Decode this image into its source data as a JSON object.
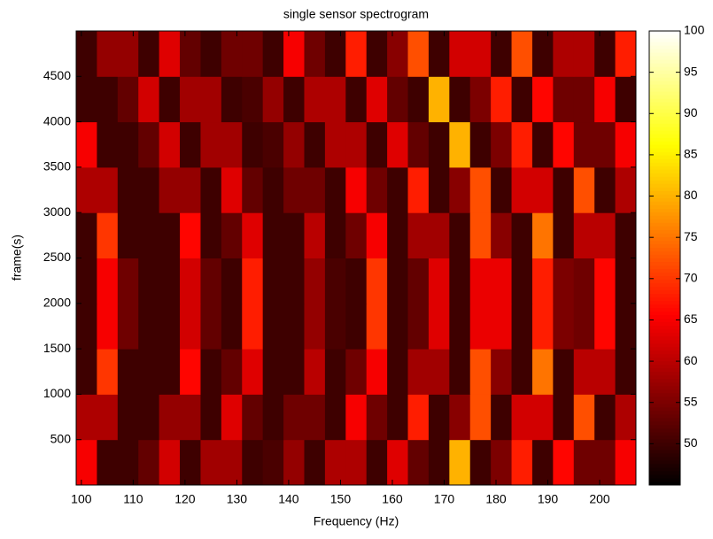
{
  "chart_data": {
    "type": "heatmap",
    "title": "single sensor spectrogram",
    "x_label": "Frequency (Hz)",
    "y_label": "frame(s)",
    "x": [
      101,
      105,
      109,
      113,
      117,
      121,
      125,
      129,
      133,
      137,
      141,
      145,
      149,
      153,
      157,
      161,
      165,
      169,
      173,
      177,
      181,
      185,
      189,
      193,
      197,
      201,
      205
    ],
    "y": [
      250,
      750,
      1250,
      1750,
      2250,
      2750,
      3250,
      3750,
      4250,
      4750
    ],
    "z": [
      [
        65,
        50,
        50,
        53,
        62,
        50,
        58,
        58,
        50,
        51,
        57,
        50,
        59,
        59,
        50,
        63,
        53,
        50,
        80,
        50,
        55,
        68,
        50,
        66,
        54,
        54,
        65
      ],
      [
        59,
        59,
        50,
        50,
        57,
        57,
        50,
        63,
        53,
        50,
        54,
        54,
        50,
        65,
        54,
        50,
        68,
        50,
        56,
        72,
        50,
        62,
        62,
        50,
        72,
        50,
        59
      ],
      [
        50,
        70,
        50,
        50,
        50,
        66,
        50,
        53,
        63,
        50,
        50,
        60,
        50,
        54,
        65,
        50,
        58,
        58,
        50,
        72,
        56,
        50,
        75,
        50,
        60,
        60,
        50
      ],
      [
        50,
        65,
        54,
        50,
        50,
        62,
        53,
        50,
        68,
        50,
        50,
        57,
        51,
        50,
        70,
        50,
        53,
        63,
        50,
        64,
        64,
        50,
        68,
        55,
        54,
        66,
        50
      ],
      [
        50,
        65,
        54,
        50,
        50,
        62,
        53,
        50,
        68,
        50,
        50,
        57,
        51,
        50,
        70,
        50,
        53,
        63,
        50,
        64,
        64,
        50,
        68,
        55,
        54,
        66,
        50
      ],
      [
        50,
        70,
        50,
        50,
        50,
        66,
        50,
        53,
        63,
        50,
        50,
        60,
        50,
        54,
        65,
        50,
        58,
        58,
        50,
        72,
        56,
        50,
        75,
        50,
        60,
        60,
        50
      ],
      [
        59,
        59,
        50,
        50,
        57,
        57,
        50,
        63,
        53,
        50,
        54,
        54,
        50,
        65,
        54,
        50,
        68,
        50,
        56,
        72,
        50,
        62,
        62,
        50,
        72,
        50,
        59
      ],
      [
        65,
        50,
        50,
        53,
        62,
        50,
        58,
        58,
        50,
        51,
        57,
        50,
        59,
        59,
        50,
        63,
        53,
        50,
        80,
        50,
        55,
        68,
        50,
        66,
        54,
        54,
        65
      ],
      [
        50,
        50,
        53,
        62,
        50,
        58,
        58,
        50,
        51,
        57,
        50,
        59,
        59,
        50,
        63,
        53,
        50,
        80,
        50,
        55,
        68,
        50,
        66,
        54,
        54,
        65,
        50
      ],
      [
        50,
        57,
        57,
        50,
        63,
        53,
        50,
        54,
        54,
        50,
        65,
        54,
        50,
        68,
        50,
        56,
        72,
        50,
        62,
        62,
        50,
        72,
        50,
        59,
        59,
        50,
        68
      ]
    ],
    "xlim": [
      99,
      207
    ],
    "ylim": [
      0,
      5000
    ],
    "clim": [
      45,
      100
    ],
    "xticks": [
      100,
      110,
      120,
      130,
      140,
      150,
      160,
      170,
      180,
      190,
      200
    ],
    "yticks": [
      500,
      1000,
      1500,
      2000,
      2500,
      3000,
      3500,
      4000,
      4500
    ],
    "cticks": [
      50,
      55,
      60,
      65,
      70,
      75,
      80,
      85,
      90,
      95,
      100
    ],
    "colormap": "hot"
  }
}
